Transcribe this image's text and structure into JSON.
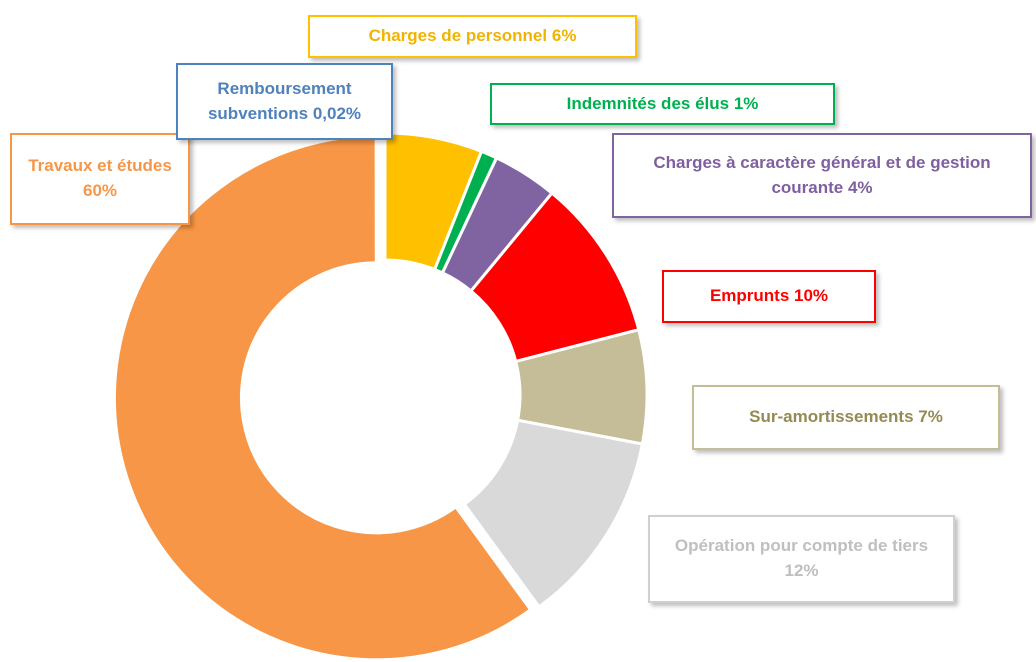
{
  "chart_data": {
    "type": "donut",
    "categories": [
      "Charges de personnel",
      "Indemnités des élus",
      "Charges à caractère général et de gestion courante",
      "Emprunts",
      "Sur-amortissements",
      "Opération pour compte de tiers",
      "Travaux et études",
      "Remboursement subventions"
    ],
    "values": [
      6,
      1,
      4,
      10,
      7,
      12,
      60,
      0.02
    ],
    "value_labels": [
      "6%",
      "1%",
      "4%",
      "10%",
      "7%",
      "12%",
      "60%",
      "0,02%"
    ],
    "colors": [
      "#ffc000",
      "#00b050",
      "#8064a2",
      "#ff0000",
      "#c4bd97",
      "#d9d9d9",
      "#f79646",
      "#4f81bd"
    ]
  }
}
